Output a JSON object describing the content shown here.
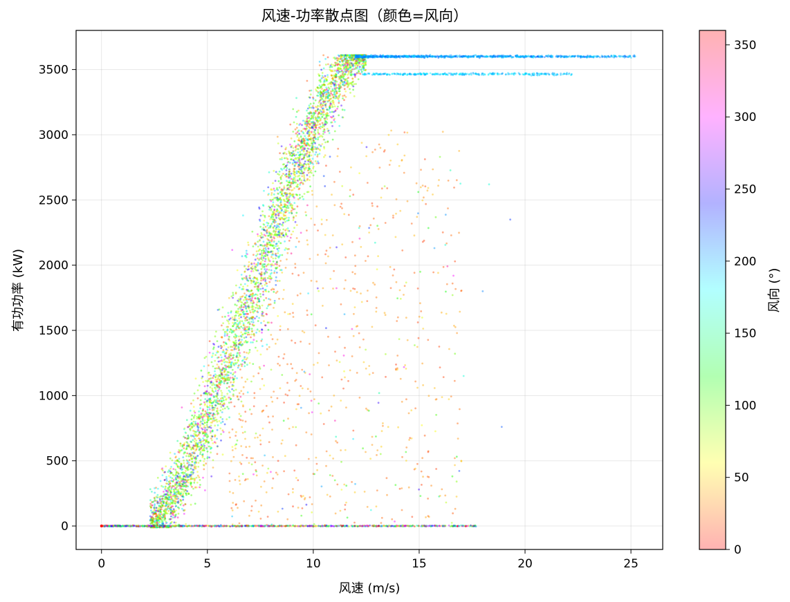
{
  "chart_data": {
    "type": "scatter",
    "title": "风速-功率散点图（颜色=风向）",
    "xlabel": "风速 (m/s)",
    "ylabel": "有功功率 (kW)",
    "colorbar_label": "风向 (°)",
    "xlim": [
      -1.2,
      26.5
    ],
    "ylim": [
      -180,
      3800
    ],
    "clim": [
      0,
      360
    ],
    "x_ticks": [
      0,
      5,
      10,
      15,
      20,
      25
    ],
    "y_ticks": [
      0,
      500,
      1000,
      1500,
      2000,
      2500,
      3000,
      3500
    ],
    "colorbar_ticks": [
      0,
      50,
      100,
      150,
      200,
      250,
      300,
      350
    ],
    "grid": true,
    "colormap": "hsv (alpha 0.3)",
    "point_color_encoding": "wind direction (deg)",
    "power_curve": {
      "cut_in_speed": 2.3,
      "rated_speed": 12.0,
      "rated_power": 3600,
      "secondary_plateau": 3465,
      "max_wind_speed": 25.2
    },
    "sample_points": [
      {
        "x": 0.0,
        "y": 0,
        "dir": 0
      },
      {
        "x": 3.0,
        "y": 60,
        "dir": 95
      },
      {
        "x": 4.0,
        "y": 250,
        "dir": 100
      },
      {
        "x": 5.0,
        "y": 520,
        "dir": 110
      },
      {
        "x": 6.0,
        "y": 900,
        "dir": 150
      },
      {
        "x": 7.0,
        "y": 1350,
        "dir": 120
      },
      {
        "x": 8.0,
        "y": 1900,
        "dir": 80
      },
      {
        "x": 9.0,
        "y": 2450,
        "dir": 60
      },
      {
        "x": 10.0,
        "y": 3000,
        "dir": 40
      },
      {
        "x": 11.0,
        "y": 3450,
        "dir": 90
      },
      {
        "x": 12.0,
        "y": 3600,
        "dir": 200
      },
      {
        "x": 15.0,
        "y": 3600,
        "dir": 210
      },
      {
        "x": 20.0,
        "y": 3600,
        "dir": 195
      },
      {
        "x": 25.2,
        "y": 3600,
        "dir": 190
      },
      {
        "x": 16.0,
        "y": 3465,
        "dir": 185
      },
      {
        "x": 22.2,
        "y": 3465,
        "dir": 190
      },
      {
        "x": 18.3,
        "y": 2620,
        "dir": 170
      },
      {
        "x": 19.3,
        "y": 2350,
        "dir": 230
      },
      {
        "x": 18.0,
        "y": 1800,
        "dir": 210
      },
      {
        "x": 18.9,
        "y": 760,
        "dir": 220
      },
      {
        "x": 17.1,
        "y": 1150,
        "dir": 170
      },
      {
        "x": 12.5,
        "y": 900,
        "dir": 30
      },
      {
        "x": 14.0,
        "y": 1600,
        "dir": 25
      },
      {
        "x": 10.0,
        "y": 400,
        "dir": 20
      }
    ]
  }
}
